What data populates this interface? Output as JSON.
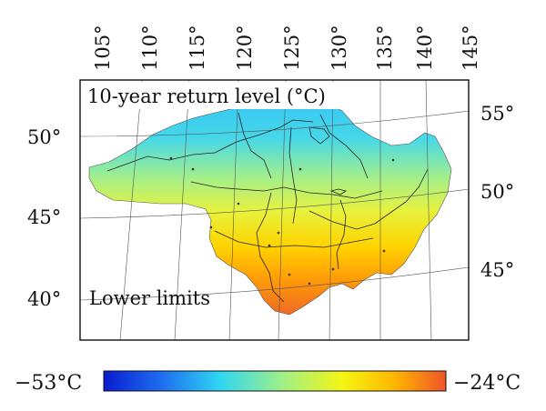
{
  "map": {
    "title": "10-year return level (°C)",
    "subtitle": "Lower limits",
    "top_longitudes": [
      "105°",
      "110°",
      "115°",
      "120°",
      "125°",
      "130°",
      "135°",
      "140°",
      "145°"
    ],
    "left_latitudes": [
      "50°",
      "45°",
      "40°"
    ],
    "right_latitudes": [
      "55°",
      "50°",
      "45°"
    ]
  },
  "colorbar": {
    "min_label": "−53°C",
    "max_label": "−24°C",
    "min_value": -53,
    "max_value": -24,
    "colors": [
      "#0a1ccf",
      "#1e6ef0",
      "#2fd6f2",
      "#9ef08a",
      "#f6f512",
      "#ffb600",
      "#f0542a"
    ]
  }
}
